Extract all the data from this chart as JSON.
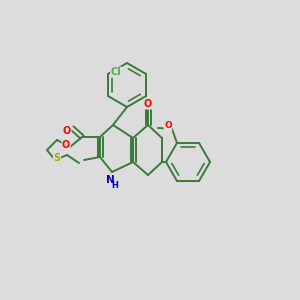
{
  "bg_color": "#dcdcdc",
  "bond_color": "#3a7a3a",
  "bond_width": 1.4,
  "atom_colors": {
    "O": "#ff0000",
    "N": "#0000bb",
    "Cl": "#55aa55",
    "S": "#aaaa00",
    "C": "#3a7a3a",
    "H": "#3a7a3a"
  },
  "figsize": [
    3.0,
    3.0
  ],
  "dpi": 100
}
